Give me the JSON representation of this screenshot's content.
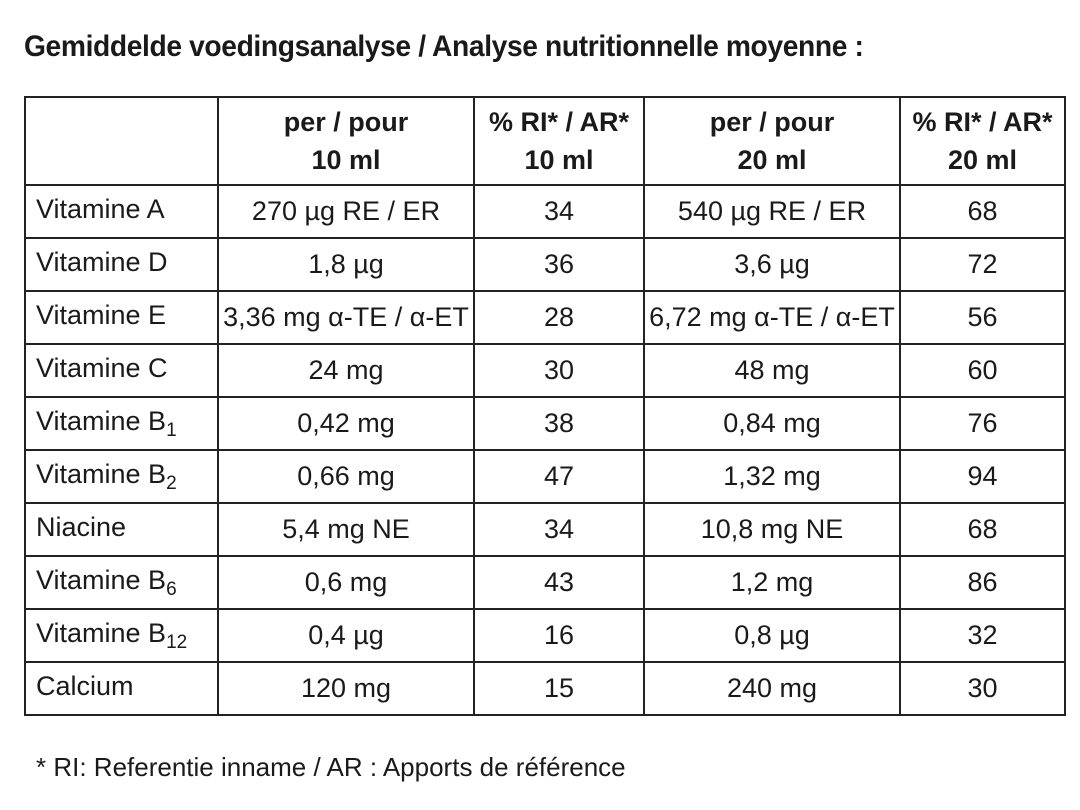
{
  "title": "Gemiddelde voedingsanalyse / Analyse nutritionnelle moyenne :",
  "header": {
    "col0": "",
    "col1_line1": "per / pour",
    "col1_line2": "10 ml",
    "col2_line1": "% RI* / AR*",
    "col2_line2": "10 ml",
    "col3_line1": "per / pour",
    "col3_line2": "20 ml",
    "col4_line1": "% RI* / AR*",
    "col4_line2": "20 ml"
  },
  "rows": [
    {
      "name": "Vitamine A",
      "sub": "",
      "per10": "270 µg RE / ER",
      "ri10": "34",
      "per20": "540 µg RE / ER",
      "ri20": "68"
    },
    {
      "name": "Vitamine D",
      "sub": "",
      "per10": "1,8 µg",
      "ri10": "36",
      "per20": "3,6 µg",
      "ri20": "72"
    },
    {
      "name": "Vitamine E",
      "sub": "",
      "per10": "3,36 mg α-TE / α-ET",
      "ri10": "28",
      "per20": "6,72 mg α-TE / α-ET",
      "ri20": "56"
    },
    {
      "name": "Vitamine C",
      "sub": "",
      "per10": "24 mg",
      "ri10": "30",
      "per20": "48 mg",
      "ri20": "60"
    },
    {
      "name": "Vitamine B",
      "sub": "1",
      "per10": "0,42 mg",
      "ri10": "38",
      "per20": "0,84 mg",
      "ri20": "76"
    },
    {
      "name": "Vitamine B",
      "sub": "2",
      "per10": "0,66 mg",
      "ri10": "47",
      "per20": "1,32 mg",
      "ri20": "94"
    },
    {
      "name": "Niacine",
      "sub": "",
      "per10": "5,4 mg NE",
      "ri10": "34",
      "per20": "10,8 mg NE",
      "ri20": "68"
    },
    {
      "name": "Vitamine B",
      "sub": "6",
      "per10": "0,6 mg",
      "ri10": "43",
      "per20": "1,2 mg",
      "ri20": "86"
    },
    {
      "name": "Vitamine B",
      "sub": "12",
      "per10": "0,4 µg",
      "ri10": "16",
      "per20": "0,8 µg",
      "ri20": "32"
    },
    {
      "name": "Calcium",
      "sub": "",
      "per10": "120 mg",
      "ri10": "15",
      "per20": "240 mg",
      "ri20": "30"
    }
  ],
  "footnote": "* RI: Referentie inname / AR : Apports de référence"
}
